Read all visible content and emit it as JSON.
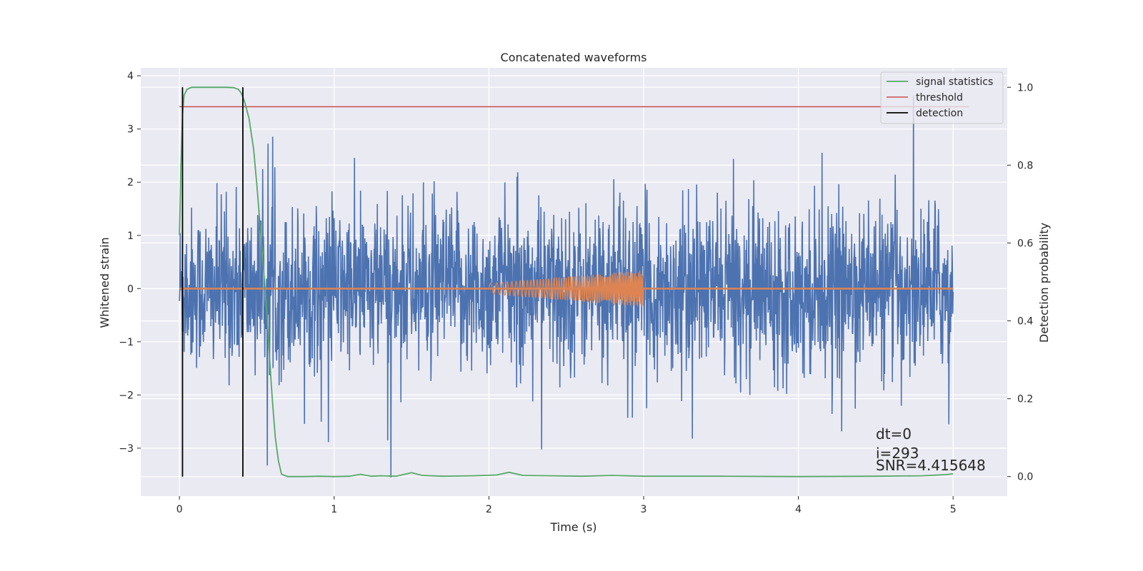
{
  "chart_data": {
    "type": "line",
    "title": "Concatenated waveforms",
    "xlabel": "Time (s)",
    "ylabel": "Whitened strain",
    "y2label": "Detection probability",
    "xlim": [
      -0.25,
      5.35
    ],
    "ylim": [
      -3.9,
      4.15
    ],
    "y2lim": [
      -0.05,
      1.05
    ],
    "xticks": [
      0,
      1,
      2,
      3,
      4,
      5
    ],
    "xtick_labels": [
      "0",
      "1",
      "2",
      "3",
      "4",
      "5"
    ],
    "yticks": [
      -3,
      -2,
      -1,
      0,
      1,
      2,
      3,
      4
    ],
    "ytick_labels": [
      "−3",
      "−2",
      "−1",
      "0",
      "1",
      "2",
      "3",
      "4"
    ],
    "y2ticks": [
      0.0,
      0.2,
      0.4,
      0.6,
      0.8,
      1.0
    ],
    "y2tick_labels": [
      "0.0",
      "0.2",
      "0.4",
      "0.6",
      "0.8",
      "1.0"
    ],
    "grid": true,
    "legend_position": "top-right",
    "legend": [
      "signal statistics",
      "threshold",
      "detection"
    ],
    "colors": {
      "strain": "#4c72b0",
      "template": "#dd8452",
      "signal_statistics": "#55a868",
      "threshold": "#c44e52",
      "detection": "#000000",
      "background": "#eaeaf2"
    },
    "series": [
      {
        "name": "signal statistics",
        "axis": "right",
        "x": [
          0,
          0.01,
          0.02,
          0.03,
          0.05,
          0.08,
          0.1,
          0.2,
          0.3,
          0.35,
          0.38,
          0.4,
          0.42,
          0.45,
          0.48,
          0.5,
          0.53,
          0.56,
          0.58,
          0.6,
          0.62,
          0.64,
          0.66,
          0.7,
          0.8,
          0.9,
          1.0,
          1.1,
          1.17,
          1.24,
          1.3,
          1.4,
          1.5,
          1.57,
          1.7,
          1.9,
          2.05,
          2.13,
          2.22,
          2.4,
          2.6,
          2.8,
          3.0,
          3.5,
          4.0,
          4.5,
          4.8,
          4.95,
          5.0
        ],
        "y": [
          0.62,
          0.8,
          0.93,
          0.98,
          0.995,
          1.0,
          1.0,
          1.0,
          1.0,
          0.999,
          0.995,
          0.985,
          0.965,
          0.92,
          0.84,
          0.75,
          0.6,
          0.45,
          0.32,
          0.2,
          0.1,
          0.04,
          0.006,
          0.0,
          0.0,
          0.001,
          0.0,
          0.001,
          0.006,
          0.001,
          0.002,
          0.001,
          0.01,
          0.003,
          0.001,
          0.002,
          0.004,
          0.011,
          0.003,
          0.002,
          0.001,
          0.003,
          0.001,
          0.001,
          0.0,
          0.001,
          0.002,
          0.005,
          0.007
        ]
      },
      {
        "name": "threshold",
        "axis": "right",
        "x": [
          0,
          5.1
        ],
        "y": [
          0.95,
          0.95
        ]
      },
      {
        "name": "detection",
        "axis": "right",
        "x_values": [
          0.02,
          0.41
        ],
        "y_range": [
          0.0,
          1.0
        ]
      }
    ],
    "strain_noise": {
      "x_range": [
        0,
        5
      ],
      "envelope": 1.0,
      "peak_max": 3.76,
      "trough_min": -3.55
    },
    "template_chirp": {
      "x_range": [
        2,
        3
      ],
      "amp_start": 0.1,
      "amp_end": 0.35
    },
    "annotations": [
      "dt=0",
      "i=293",
      "SNR=4.415648"
    ]
  }
}
